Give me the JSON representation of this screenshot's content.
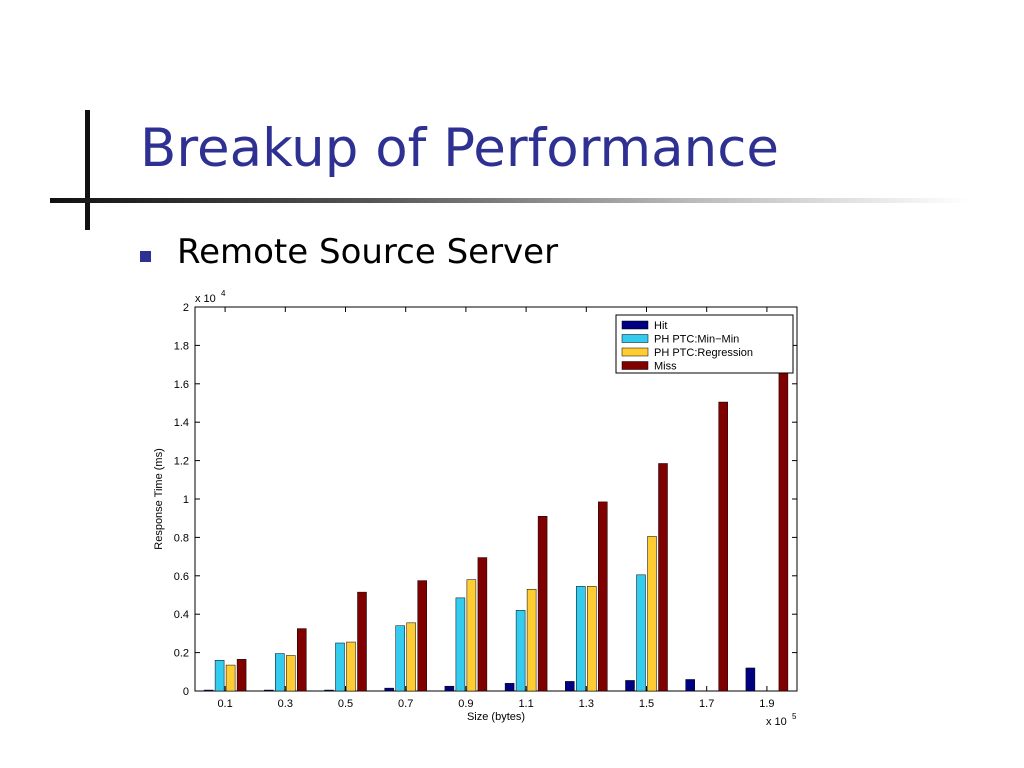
{
  "slide": {
    "title": "Breakup of Performance",
    "bullet": "Remote Source Server"
  },
  "colors": {
    "title": "#2e3192",
    "bullet": "#2e3192",
    "series": [
      "#000080",
      "#33ccee",
      "#ffcc33",
      "#800000"
    ]
  },
  "chart_data": {
    "type": "bar",
    "categories": [
      "0.1",
      "0.3",
      "0.5",
      "0.7",
      "0.9",
      "1.1",
      "1.3",
      "1.5",
      "1.7",
      "1.9"
    ],
    "x_exponent_label": "x 10",
    "x_exponent": "5",
    "y_exponent_label": "x 10",
    "y_exponent": "4",
    "xlabel": "Size (bytes)",
    "ylabel": "Response Time (ms)",
    "ylim": [
      0,
      20000
    ],
    "yticks": [
      0,
      0.2,
      0.4,
      0.6,
      0.8,
      1,
      1.2,
      1.4,
      1.6,
      1.8,
      2
    ],
    "y_scale": 10000,
    "grid": false,
    "legend_position": "top-right",
    "series": [
      {
        "name": "Hit",
        "values": [
          50,
          50,
          50,
          150,
          250,
          400,
          500,
          550,
          600,
          1200
        ]
      },
      {
        "name": "PH PTC:Min−Min",
        "values": [
          1600,
          1950,
          2500,
          3400,
          4850,
          4200,
          5450,
          6050,
          null,
          null
        ]
      },
      {
        "name": "PH PTC:Regression",
        "values": [
          1350,
          1850,
          2550,
          3550,
          5800,
          5300,
          5450,
          8050,
          null,
          null
        ]
      },
      {
        "name": "Miss",
        "values": [
          1650,
          3250,
          5150,
          5750,
          6950,
          9100,
          9850,
          11850,
          15050,
          17500
        ]
      }
    ]
  }
}
